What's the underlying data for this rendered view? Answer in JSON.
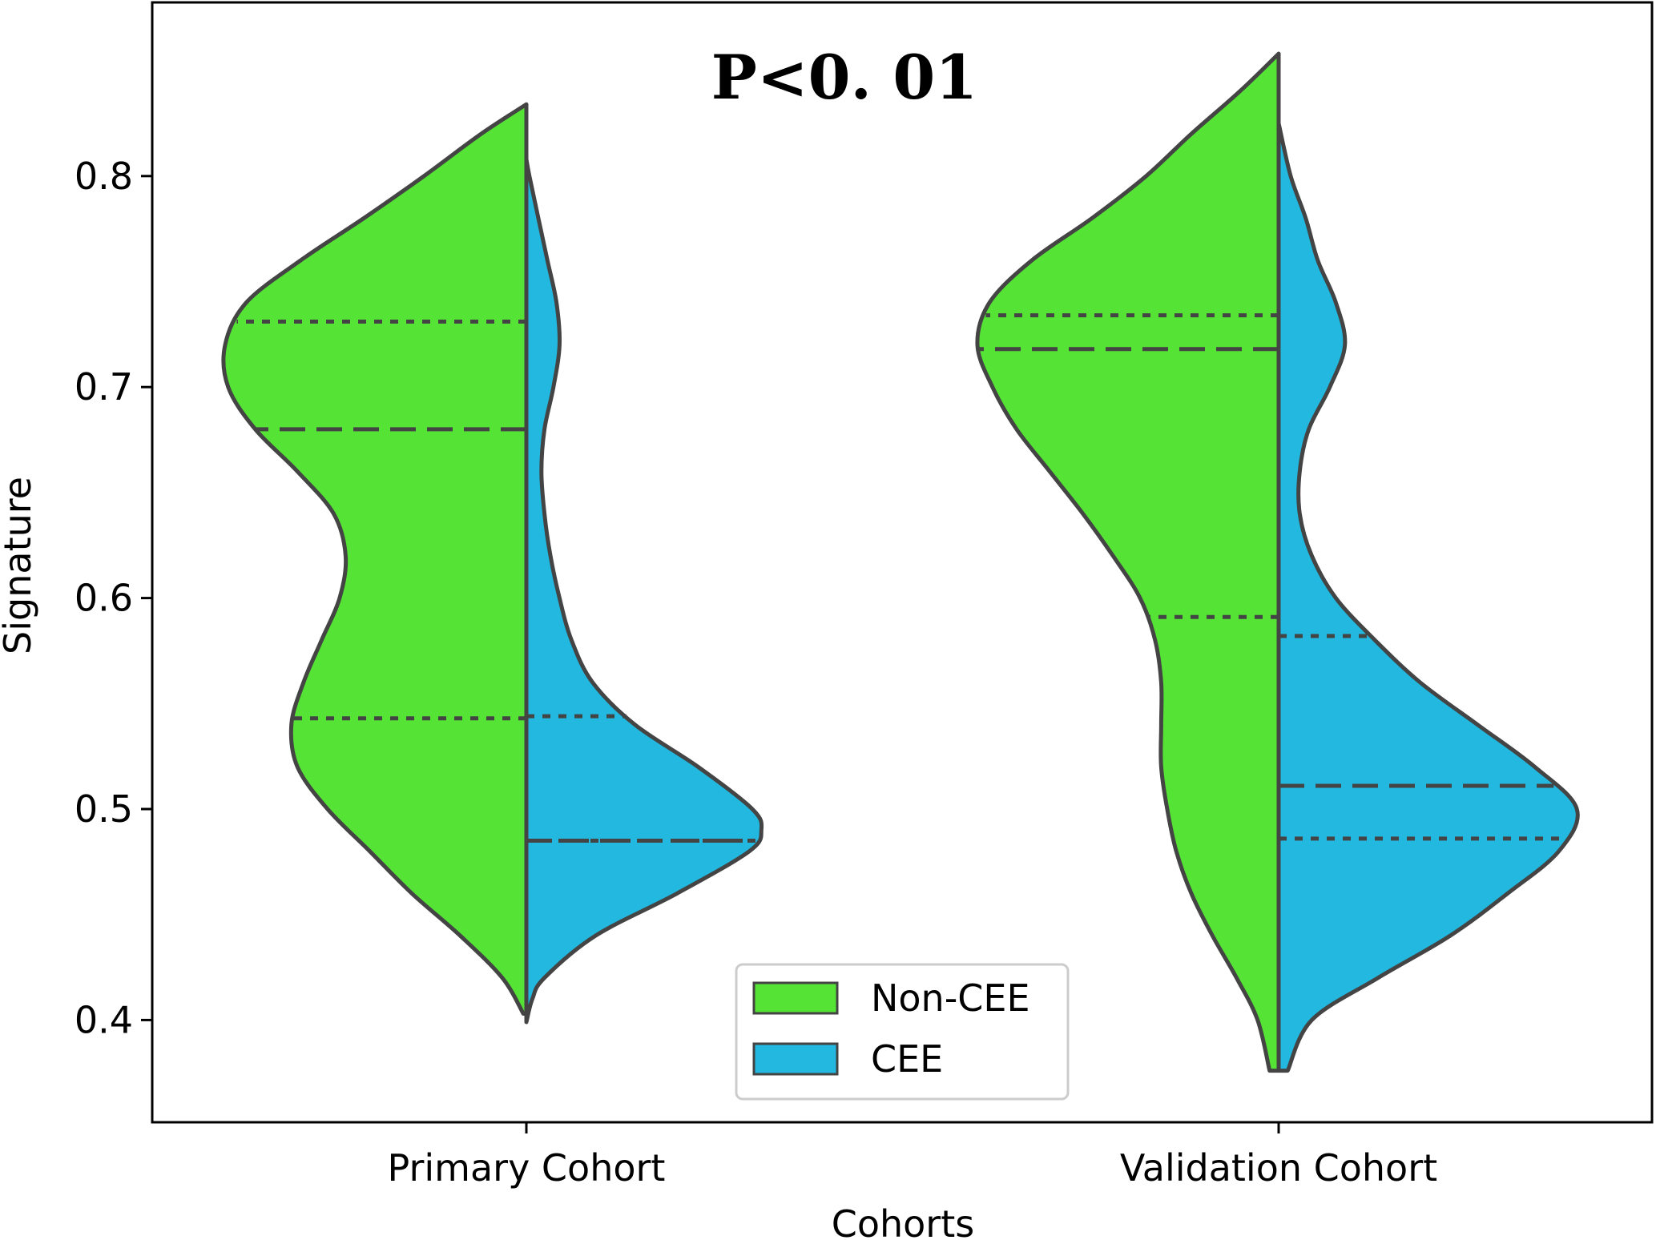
{
  "chart_data": {
    "type": "violin",
    "title": "",
    "annotation": "P<0. 01",
    "xlabel": "Cohorts",
    "ylabel": "Signature",
    "categories": [
      "Primary Cohort",
      "Validation Cohort"
    ],
    "ylim": [
      0.35,
      0.87
    ],
    "yticks": [
      {
        "value": 0.4,
        "label": "0.4"
      },
      {
        "value": 0.5,
        "label": "0.5"
      },
      {
        "value": 0.6,
        "label": "0.6"
      },
      {
        "value": 0.7,
        "label": "0.7"
      },
      {
        "value": 0.8,
        "label": "0.8"
      }
    ],
    "grid": false,
    "legend_position": "bottom-center",
    "series": [
      {
        "name": "Non-CEE",
        "color": "#55e335",
        "side": "left",
        "violins": [
          {
            "category": "Primary Cohort",
            "min": 0.403,
            "max": 0.834,
            "quartiles": {
              "q1": 0.543,
              "median": 0.68,
              "q3": 0.731
            },
            "profile": [
              [
                0.403,
                0.01
              ],
              [
                0.42,
                0.08
              ],
              [
                0.44,
                0.22
              ],
              [
                0.46,
                0.38
              ],
              [
                0.48,
                0.52
              ],
              [
                0.5,
                0.66
              ],
              [
                0.52,
                0.76
              ],
              [
                0.54,
                0.78
              ],
              [
                0.56,
                0.74
              ],
              [
                0.58,
                0.68
              ],
              [
                0.6,
                0.62
              ],
              [
                0.62,
                0.6
              ],
              [
                0.64,
                0.64
              ],
              [
                0.66,
                0.76
              ],
              [
                0.68,
                0.9
              ],
              [
                0.7,
                0.99
              ],
              [
                0.72,
                1.0
              ],
              [
                0.74,
                0.93
              ],
              [
                0.76,
                0.75
              ],
              [
                0.78,
                0.54
              ],
              [
                0.8,
                0.34
              ],
              [
                0.82,
                0.15
              ],
              [
                0.834,
                0.0
              ]
            ]
          },
          {
            "category": "Validation Cohort",
            "min": 0.376,
            "max": 0.858,
            "quartiles": {
              "q1": 0.591,
              "median": 0.718,
              "q3": 0.734
            },
            "profile": [
              [
                0.376,
                0.03
              ],
              [
                0.4,
                0.07
              ],
              [
                0.42,
                0.14
              ],
              [
                0.44,
                0.22
              ],
              [
                0.46,
                0.29
              ],
              [
                0.48,
                0.34
              ],
              [
                0.5,
                0.37
              ],
              [
                0.52,
                0.39
              ],
              [
                0.54,
                0.39
              ],
              [
                0.56,
                0.39
              ],
              [
                0.58,
                0.41
              ],
              [
                0.6,
                0.46
              ],
              [
                0.62,
                0.55
              ],
              [
                0.64,
                0.65
              ],
              [
                0.66,
                0.76
              ],
              [
                0.68,
                0.87
              ],
              [
                0.7,
                0.95
              ],
              [
                0.72,
                1.0
              ],
              [
                0.74,
                0.96
              ],
              [
                0.76,
                0.82
              ],
              [
                0.78,
                0.62
              ],
              [
                0.8,
                0.44
              ],
              [
                0.82,
                0.29
              ],
              [
                0.84,
                0.13
              ],
              [
                0.858,
                0.0
              ]
            ]
          }
        ]
      },
      {
        "name": "CEE",
        "color": "#22b8df",
        "side": "right",
        "violins": [
          {
            "category": "Primary Cohort",
            "min": 0.399,
            "max": 0.808,
            "quartiles": {
              "q1": 0.485,
              "median": 0.485,
              "q3": 0.544
            },
            "profile": [
              [
                0.399,
                0.0
              ],
              [
                0.41,
                0.02
              ],
              [
                0.42,
                0.06
              ],
              [
                0.44,
                0.23
              ],
              [
                0.46,
                0.5
              ],
              [
                0.48,
                0.74
              ],
              [
                0.49,
                0.78
              ],
              [
                0.5,
                0.75
              ],
              [
                0.52,
                0.57
              ],
              [
                0.54,
                0.36
              ],
              [
                0.56,
                0.22
              ],
              [
                0.58,
                0.15
              ],
              [
                0.6,
                0.11
              ],
              [
                0.62,
                0.08
              ],
              [
                0.64,
                0.06
              ],
              [
                0.66,
                0.05
              ],
              [
                0.68,
                0.06
              ],
              [
                0.7,
                0.09
              ],
              [
                0.72,
                0.11
              ],
              [
                0.74,
                0.1
              ],
              [
                0.76,
                0.07
              ],
              [
                0.78,
                0.04
              ],
              [
                0.8,
                0.01
              ],
              [
                0.808,
                0.0
              ]
            ]
          },
          {
            "category": "Validation Cohort",
            "min": 0.376,
            "max": 0.825,
            "quartiles": {
              "q1": 0.486,
              "median": 0.511,
              "q3": 0.582
            },
            "profile": [
              [
                0.376,
                0.03
              ],
              [
                0.4,
                0.11
              ],
              [
                0.42,
                0.33
              ],
              [
                0.44,
                0.57
              ],
              [
                0.46,
                0.76
              ],
              [
                0.48,
                0.93
              ],
              [
                0.5,
                0.99
              ],
              [
                0.52,
                0.85
              ],
              [
                0.54,
                0.66
              ],
              [
                0.56,
                0.47
              ],
              [
                0.58,
                0.32
              ],
              [
                0.6,
                0.19
              ],
              [
                0.62,
                0.11
              ],
              [
                0.64,
                0.07
              ],
              [
                0.66,
                0.07
              ],
              [
                0.68,
                0.1
              ],
              [
                0.7,
                0.17
              ],
              [
                0.72,
                0.22
              ],
              [
                0.74,
                0.19
              ],
              [
                0.76,
                0.13
              ],
              [
                0.78,
                0.09
              ],
              [
                0.8,
                0.04
              ],
              [
                0.825,
                0.0
              ]
            ]
          }
        ]
      }
    ]
  }
}
